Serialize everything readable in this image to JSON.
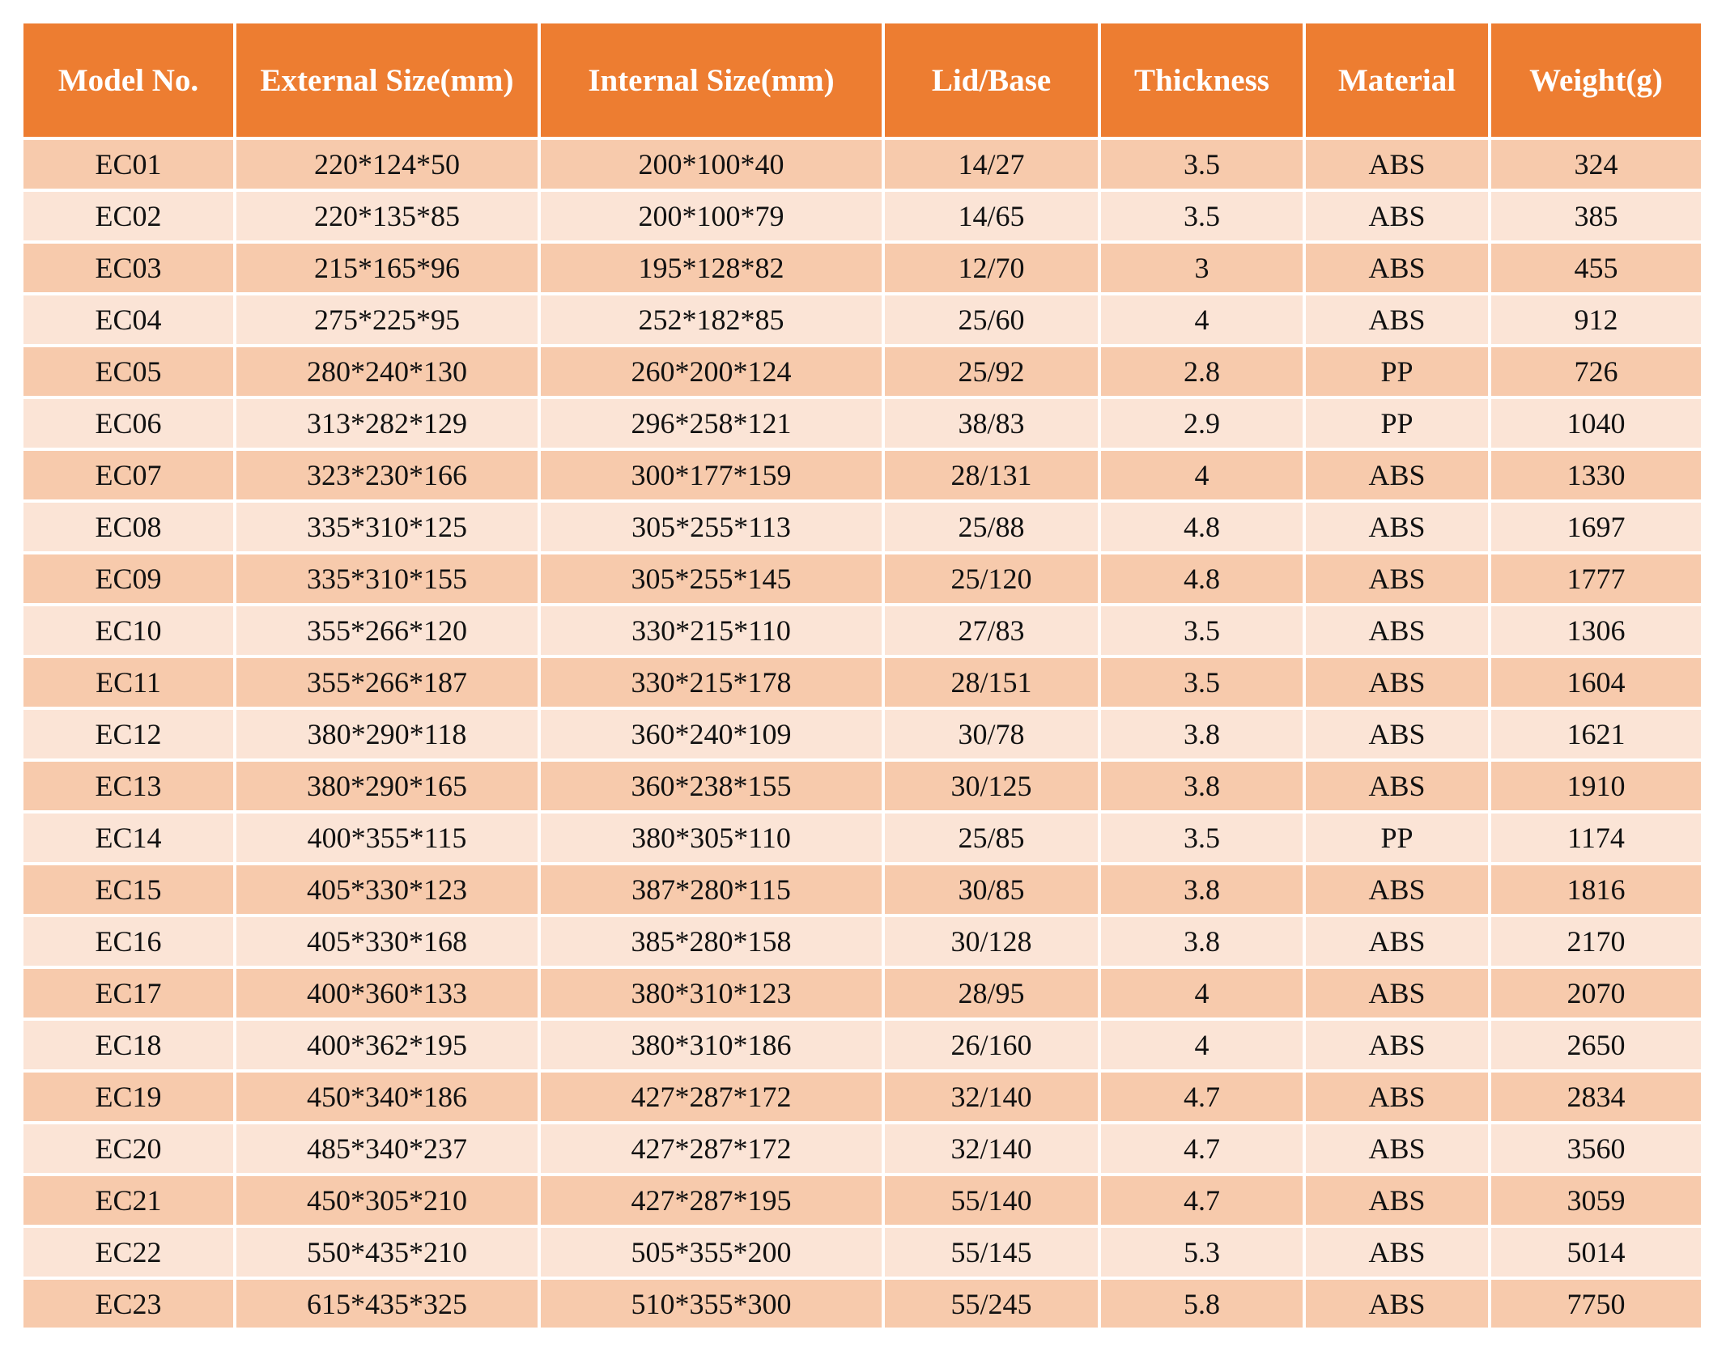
{
  "table": {
    "headers": [
      "Model No.",
      "External Size(mm)",
      "Internal Size(mm)",
      "Lid/Base",
      "Thickness",
      "Material",
      "Weight(g)"
    ],
    "rows": [
      {
        "model": "EC01",
        "external": "220*124*50",
        "internal": "200*100*40",
        "lid_base": "14/27",
        "thickness": "3.5",
        "material": "ABS",
        "weight": "324"
      },
      {
        "model": "EC02",
        "external": "220*135*85",
        "internal": "200*100*79",
        "lid_base": "14/65",
        "thickness": "3.5",
        "material": "ABS",
        "weight": "385"
      },
      {
        "model": "EC03",
        "external": "215*165*96",
        "internal": "195*128*82",
        "lid_base": "12/70",
        "thickness": "3",
        "material": "ABS",
        "weight": "455"
      },
      {
        "model": "EC04",
        "external": "275*225*95",
        "internal": "252*182*85",
        "lid_base": "25/60",
        "thickness": "4",
        "material": "ABS",
        "weight": "912"
      },
      {
        "model": "EC05",
        "external": "280*240*130",
        "internal": "260*200*124",
        "lid_base": "25/92",
        "thickness": "2.8",
        "material": "PP",
        "weight": "726"
      },
      {
        "model": "EC06",
        "external": "313*282*129",
        "internal": "296*258*121",
        "lid_base": "38/83",
        "thickness": "2.9",
        "material": "PP",
        "weight": "1040"
      },
      {
        "model": "EC07",
        "external": "323*230*166",
        "internal": "300*177*159",
        "lid_base": "28/131",
        "thickness": "4",
        "material": "ABS",
        "weight": "1330"
      },
      {
        "model": "EC08",
        "external": "335*310*125",
        "internal": "305*255*113",
        "lid_base": "25/88",
        "thickness": "4.8",
        "material": "ABS",
        "weight": "1697"
      },
      {
        "model": "EC09",
        "external": "335*310*155",
        "internal": "305*255*145",
        "lid_base": "25/120",
        "thickness": "4.8",
        "material": "ABS",
        "weight": "1777"
      },
      {
        "model": "EC10",
        "external": "355*266*120",
        "internal": "330*215*110",
        "lid_base": "27/83",
        "thickness": "3.5",
        "material": "ABS",
        "weight": "1306"
      },
      {
        "model": "EC11",
        "external": "355*266*187",
        "internal": "330*215*178",
        "lid_base": "28/151",
        "thickness": "3.5",
        "material": "ABS",
        "weight": "1604"
      },
      {
        "model": "EC12",
        "external": "380*290*118",
        "internal": "360*240*109",
        "lid_base": "30/78",
        "thickness": "3.8",
        "material": "ABS",
        "weight": "1621"
      },
      {
        "model": "EC13",
        "external": "380*290*165",
        "internal": "360*238*155",
        "lid_base": "30/125",
        "thickness": "3.8",
        "material": "ABS",
        "weight": "1910"
      },
      {
        "model": "EC14",
        "external": "400*355*115",
        "internal": "380*305*110",
        "lid_base": "25/85",
        "thickness": "3.5",
        "material": "PP",
        "weight": "1174"
      },
      {
        "model": "EC15",
        "external": "405*330*123",
        "internal": "387*280*115",
        "lid_base": "30/85",
        "thickness": "3.8",
        "material": "ABS",
        "weight": "1816"
      },
      {
        "model": "EC16",
        "external": "405*330*168",
        "internal": "385*280*158",
        "lid_base": "30/128",
        "thickness": "3.8",
        "material": "ABS",
        "weight": "2170"
      },
      {
        "model": "EC17",
        "external": "400*360*133",
        "internal": "380*310*123",
        "lid_base": "28/95",
        "thickness": "4",
        "material": "ABS",
        "weight": "2070"
      },
      {
        "model": "EC18",
        "external": "400*362*195",
        "internal": "380*310*186",
        "lid_base": "26/160",
        "thickness": "4",
        "material": "ABS",
        "weight": "2650"
      },
      {
        "model": "EC19",
        "external": "450*340*186",
        "internal": "427*287*172",
        "lid_base": "32/140",
        "thickness": "4.7",
        "material": "ABS",
        "weight": "2834"
      },
      {
        "model": "EC20",
        "external": "485*340*237",
        "internal": "427*287*172",
        "lid_base": "32/140",
        "thickness": "4.7",
        "material": "ABS",
        "weight": "3560"
      },
      {
        "model": "EC21",
        "external": "450*305*210",
        "internal": "427*287*195",
        "lid_base": "55/140",
        "thickness": "4.7",
        "material": "ABS",
        "weight": "3059"
      },
      {
        "model": "EC22",
        "external": "550*435*210",
        "internal": "505*355*200",
        "lid_base": "55/145",
        "thickness": "5.3",
        "material": "ABS",
        "weight": "5014"
      },
      {
        "model": "EC23",
        "external": "615*435*325",
        "internal": "510*355*300",
        "lid_base": "55/245",
        "thickness": "5.8",
        "material": "ABS",
        "weight": "7750"
      }
    ]
  },
  "colors": {
    "header_bg": "#ed7d31",
    "header_text": "#ffffff",
    "row_odd_bg": "#f7caac",
    "row_even_bg": "#fbe4d6"
  }
}
